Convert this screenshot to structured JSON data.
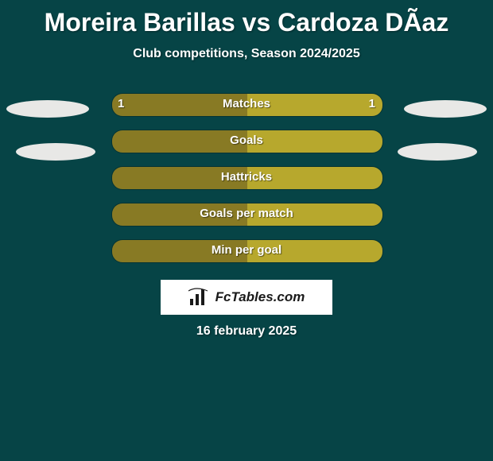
{
  "background_color": "#064446",
  "title": "Moreira Barillas vs Cardoza DÃ­az",
  "title_fontsize": 32,
  "title_color": "#ffffff",
  "subtitle": "Club competitions, Season 2024/2025",
  "subtitle_fontsize": 16,
  "bars": {
    "track_width": 340,
    "track_height": 28,
    "track_border": "rgba(0,0,0,0.25)",
    "left_color": "#887a24",
    "right_color": "#b7a82d",
    "rows": [
      {
        "label": "Matches",
        "left_val": "1",
        "right_val": "1",
        "left_pct": 50,
        "right_pct": 50,
        "show_vals": true
      },
      {
        "label": "Goals",
        "left_val": "",
        "right_val": "",
        "left_pct": 50,
        "right_pct": 50,
        "show_vals": false
      },
      {
        "label": "Hattricks",
        "left_val": "",
        "right_val": "",
        "left_pct": 50,
        "right_pct": 50,
        "show_vals": false
      },
      {
        "label": "Goals per match",
        "left_val": "",
        "right_val": "",
        "left_pct": 50,
        "right_pct": 50,
        "show_vals": false
      },
      {
        "label": "Min per goal",
        "left_val": "",
        "right_val": "",
        "left_pct": 50,
        "right_pct": 50,
        "show_vals": false
      }
    ]
  },
  "clouds": {
    "color": "#e8e8e6"
  },
  "logo": {
    "text": "FcTables.com",
    "bg": "#ffffff",
    "text_color": "#1a1a1a",
    "icon_color": "#1a1a1a"
  },
  "date": "16 february 2025"
}
